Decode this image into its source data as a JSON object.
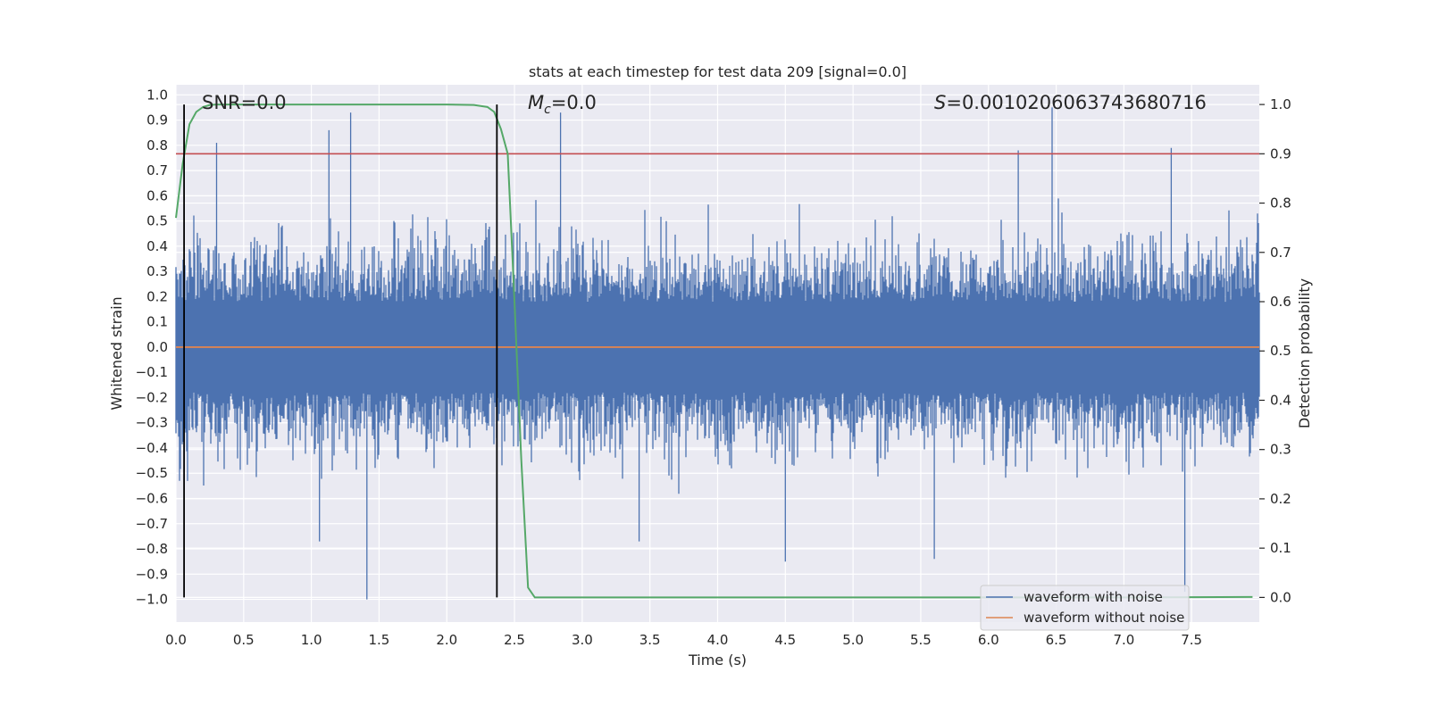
{
  "chart_data": {
    "type": "line",
    "title": "stats at each timestep for test data 209 [signal=0.0]",
    "xlabel": "Time (s)",
    "ylabel_left": "Whitened strain",
    "ylabel_right": "Detection probability",
    "xlim": [
      0.0,
      8.0
    ],
    "ylim_left": [
      -1.09,
      1.04
    ],
    "ylim_right": [
      -0.05,
      1.04
    ],
    "x_ticks": [
      "0.0",
      "0.5",
      "1.0",
      "1.5",
      "2.0",
      "2.5",
      "3.0",
      "3.5",
      "4.0",
      "4.5",
      "5.0",
      "5.5",
      "6.0",
      "6.5",
      "7.0",
      "7.5"
    ],
    "x_tick_values": [
      0.0,
      0.5,
      1.0,
      1.5,
      2.0,
      2.5,
      3.0,
      3.5,
      4.0,
      4.5,
      5.0,
      5.5,
      6.0,
      6.5,
      7.0,
      7.5
    ],
    "y_left_ticks": [
      "1.0",
      "0.9",
      "0.8",
      "0.7",
      "0.6",
      "0.5",
      "0.4",
      "0.3",
      "0.2",
      "0.1",
      "0.0",
      "−0.1",
      "−0.2",
      "−0.3",
      "−0.4",
      "−0.5",
      "−0.6",
      "−0.7",
      "−0.8",
      "−0.9",
      "−1.0"
    ],
    "y_left_tick_values": [
      1.0,
      0.9,
      0.8,
      0.7,
      0.6,
      0.5,
      0.4,
      0.3,
      0.2,
      0.1,
      0.0,
      -0.1,
      -0.2,
      -0.3,
      -0.4,
      -0.5,
      -0.6,
      -0.7,
      -0.8,
      -0.9,
      -1.0
    ],
    "y_right_ticks": [
      "1.0",
      "0.9",
      "0.8",
      "0.7",
      "0.6",
      "0.5",
      "0.4",
      "0.3",
      "0.2",
      "0.1",
      "0.0"
    ],
    "y_right_tick_values": [
      1.0,
      0.9,
      0.8,
      0.7,
      0.6,
      0.5,
      0.4,
      0.3,
      0.2,
      0.1,
      0.0
    ],
    "annotations": {
      "snr": "SNR=0.0",
      "mc": "M",
      "mc_sub": "c",
      "mc_value": "=0.0",
      "s_symbol": "S",
      "s_value": "=0.0010206063743680716"
    },
    "grid": true,
    "legend_position": "lower-right",
    "series": [
      {
        "name": "waveform with noise",
        "axis": "left",
        "color": "#4c72b0",
        "style": "dense noise",
        "envelope_typical": [
          -0.45,
          0.45
        ],
        "peaks": [
          {
            "x": 1.29,
            "y": 0.93
          },
          {
            "x": 2.84,
            "y": 0.93
          },
          {
            "x": 6.47,
            "y": 0.95
          },
          {
            "x": 1.41,
            "y": -1.0
          },
          {
            "x": 7.45,
            "y": -0.97
          },
          {
            "x": 1.13,
            "y": 0.86
          },
          {
            "x": 0.3,
            "y": 0.81
          },
          {
            "x": 7.35,
            "y": 0.79
          },
          {
            "x": 6.22,
            "y": 0.78
          },
          {
            "x": 4.5,
            "y": -0.85
          },
          {
            "x": 5.6,
            "y": -0.84
          },
          {
            "x": 1.06,
            "y": -0.77
          },
          {
            "x": 3.42,
            "y": -0.77
          }
        ]
      },
      {
        "name": "waveform without noise",
        "axis": "left",
        "color": "#dd8452",
        "x": [
          0.0,
          8.0
        ],
        "y": [
          0.0,
          0.0
        ]
      },
      {
        "name": "",
        "axis": "right",
        "color": "#55a868",
        "x": [
          0.0,
          0.05,
          0.1,
          0.15,
          0.2,
          0.25,
          0.3,
          0.4,
          0.6,
          1.0,
          1.5,
          2.0,
          2.2,
          2.3,
          2.35,
          2.4,
          2.45,
          2.5,
          2.55,
          2.6,
          2.65,
          3.0,
          4.0,
          5.0,
          6.0,
          7.0,
          7.95
        ],
        "y": [
          0.77,
          0.88,
          0.96,
          0.985,
          0.995,
          0.999,
          1.0,
          1.0,
          1.0,
          1.0,
          1.0,
          1.0,
          0.999,
          0.995,
          0.985,
          0.95,
          0.9,
          0.6,
          0.28,
          0.02,
          0.0,
          0.0,
          0.0,
          0.0,
          0.0,
          0.0,
          0.001
        ]
      },
      {
        "name": "",
        "axis": "right",
        "color": "#c44e52",
        "x": [
          0.0,
          8.0
        ],
        "y": [
          0.9,
          0.9
        ]
      }
    ],
    "vertical_lines": [
      {
        "x": 0.06,
        "color": "#000000"
      },
      {
        "x": 2.37,
        "color": "#000000"
      }
    ]
  }
}
